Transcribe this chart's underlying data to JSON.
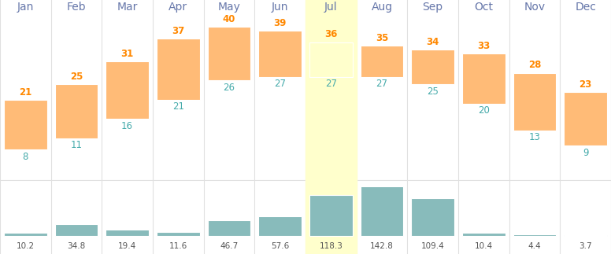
{
  "months": [
    "Jan",
    "Feb",
    "Mar",
    "Apr",
    "May",
    "Jun",
    "Jul",
    "Aug",
    "Sep",
    "Oct",
    "Nov",
    "Dec"
  ],
  "temp_min": [
    8,
    11,
    16,
    21,
    26,
    27,
    27,
    27,
    25,
    20,
    13,
    9
  ],
  "temp_max": [
    21,
    25,
    31,
    37,
    40,
    39,
    36,
    35,
    34,
    33,
    28,
    23
  ],
  "rainfall": [
    10.2,
    34.8,
    19.4,
    11.6,
    46.7,
    57.6,
    118.3,
    142.8,
    109.4,
    10.4,
    4.4,
    3.7
  ],
  "highlight_month": 6,
  "temp_bar_color": "#FFBB77",
  "temp_bar_color_highlight": "#FFFFCC",
  "rain_bar_color": "#88BBBB",
  "month_label_color": "#6677AA",
  "temp_max_color": "#FF8800",
  "temp_min_color": "#44AAAA",
  "rain_label_color": "#555555",
  "background_color": "#FFFFFF",
  "rain_max": 160.0,
  "temp_display_max": 45,
  "temp_display_min": 0
}
